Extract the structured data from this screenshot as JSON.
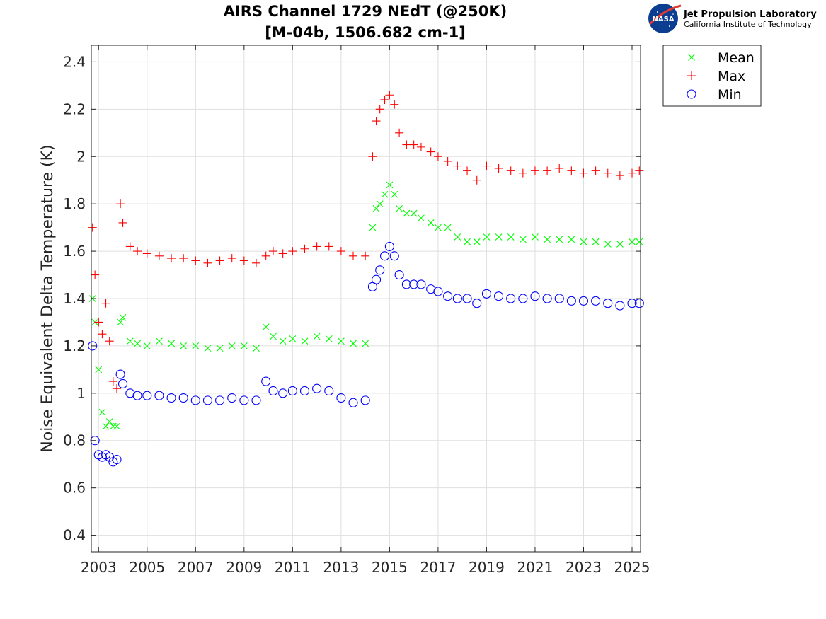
{
  "logo": {
    "name": "Jet Propulsion Laboratory",
    "subtitle": "California Institute of Technology",
    "badge": "NASA"
  },
  "chart_data": {
    "type": "scatter",
    "title": [
      "AIRS Channel 1729 NEdT (@250K)",
      "[M-04b, 1506.682 cm-1]"
    ],
    "xlabel": "",
    "ylabel": "Noise Equivalent Delta Temperature (K)",
    "xlim": [
      2002.7,
      2025.35
    ],
    "ylim": [
      0.33,
      2.47
    ],
    "xticks": [
      2003,
      2005,
      2007,
      2009,
      2011,
      2013,
      2015,
      2017,
      2019,
      2021,
      2023,
      2025
    ],
    "xtick_labels": [
      "2003",
      "2005",
      "2007",
      "2009",
      "2011",
      "2013",
      "2015",
      "2017",
      "2019",
      "2021",
      "2023",
      "2025"
    ],
    "yticks": [
      0.4,
      0.6,
      0.8,
      1.0,
      1.2,
      1.4,
      1.6,
      1.8,
      2.0,
      2.2,
      2.4
    ],
    "ytick_labels": [
      "0.4",
      "0.6",
      "0.8",
      "1",
      "1.2",
      "1.4",
      "1.6",
      "1.8",
      "2",
      "2.2",
      "2.4"
    ],
    "grid": true,
    "legend_position": "outside-top-right",
    "series": [
      {
        "name": "Mean",
        "marker": "x",
        "color": "#00ff00",
        "x": [
          2002.75,
          2002.85,
          2003.0,
          2003.15,
          2003.3,
          2003.45,
          2003.6,
          2003.75,
          2003.9,
          2004.0,
          2004.3,
          2004.6,
          2005.0,
          2005.5,
          2006.0,
          2006.5,
          2007.0,
          2007.5,
          2008.0,
          2008.5,
          2009.0,
          2009.5,
          2009.9,
          2010.2,
          2010.6,
          2011.0,
          2011.5,
          2012.0,
          2012.5,
          2013.0,
          2013.5,
          2014.0,
          2014.3,
          2014.45,
          2014.6,
          2014.8,
          2015.0,
          2015.2,
          2015.4,
          2015.7,
          2016.0,
          2016.3,
          2016.7,
          2017.0,
          2017.4,
          2017.8,
          2018.2,
          2018.6,
          2019.0,
          2019.5,
          2020.0,
          2020.5,
          2021.0,
          2021.5,
          2022.0,
          2022.5,
          2023.0,
          2023.5,
          2024.0,
          2024.5,
          2025.0,
          2025.3
        ],
        "y": [
          1.4,
          1.3,
          1.1,
          0.92,
          0.86,
          0.88,
          0.86,
          0.86,
          1.3,
          1.32,
          1.22,
          1.21,
          1.2,
          1.22,
          1.21,
          1.2,
          1.2,
          1.19,
          1.19,
          1.2,
          1.2,
          1.19,
          1.28,
          1.24,
          1.22,
          1.23,
          1.22,
          1.24,
          1.23,
          1.22,
          1.21,
          1.21,
          1.7,
          1.78,
          1.8,
          1.84,
          1.88,
          1.84,
          1.78,
          1.76,
          1.76,
          1.74,
          1.72,
          1.7,
          1.7,
          1.66,
          1.64,
          1.64,
          1.66,
          1.66,
          1.66,
          1.65,
          1.66,
          1.65,
          1.65,
          1.65,
          1.64,
          1.64,
          1.63,
          1.63,
          1.64,
          1.64
        ]
      },
      {
        "name": "Max",
        "marker": "+",
        "color": "#ff0000",
        "x": [
          2002.75,
          2002.85,
          2003.0,
          2003.15,
          2003.3,
          2003.45,
          2003.6,
          2003.75,
          2003.9,
          2004.0,
          2004.3,
          2004.6,
          2005.0,
          2005.5,
          2006.0,
          2006.5,
          2007.0,
          2007.5,
          2008.0,
          2008.5,
          2009.0,
          2009.5,
          2009.9,
          2010.2,
          2010.6,
          2011.0,
          2011.5,
          2012.0,
          2012.5,
          2013.0,
          2013.5,
          2014.0,
          2014.3,
          2014.45,
          2014.6,
          2014.8,
          2015.0,
          2015.2,
          2015.4,
          2015.7,
          2016.0,
          2016.3,
          2016.7,
          2017.0,
          2017.4,
          2017.8,
          2018.2,
          2018.6,
          2019.0,
          2019.5,
          2020.0,
          2020.5,
          2021.0,
          2021.5,
          2022.0,
          2022.5,
          2023.0,
          2023.5,
          2024.0,
          2024.5,
          2025.0,
          2025.3
        ],
        "y": [
          1.7,
          1.5,
          1.3,
          1.25,
          1.38,
          1.22,
          1.05,
          1.02,
          1.8,
          1.72,
          1.62,
          1.6,
          1.59,
          1.58,
          1.57,
          1.57,
          1.56,
          1.55,
          1.56,
          1.57,
          1.56,
          1.55,
          1.58,
          1.6,
          1.59,
          1.6,
          1.61,
          1.62,
          1.62,
          1.6,
          1.58,
          1.58,
          2.0,
          2.15,
          2.2,
          2.24,
          2.26,
          2.22,
          2.1,
          2.05,
          2.05,
          2.04,
          2.02,
          2.0,
          1.98,
          1.96,
          1.94,
          1.9,
          1.96,
          1.95,
          1.94,
          1.93,
          1.94,
          1.94,
          1.95,
          1.94,
          1.93,
          1.94,
          1.93,
          1.92,
          1.93,
          1.94
        ]
      },
      {
        "name": "Min",
        "marker": "o",
        "color": "#0000ff",
        "x": [
          2002.75,
          2002.85,
          2003.0,
          2003.15,
          2003.3,
          2003.45,
          2003.6,
          2003.75,
          2003.9,
          2004.0,
          2004.3,
          2004.6,
          2005.0,
          2005.5,
          2006.0,
          2006.5,
          2007.0,
          2007.5,
          2008.0,
          2008.5,
          2009.0,
          2009.5,
          2009.9,
          2010.2,
          2010.6,
          2011.0,
          2011.5,
          2012.0,
          2012.5,
          2013.0,
          2013.5,
          2014.0,
          2014.3,
          2014.45,
          2014.6,
          2014.8,
          2015.0,
          2015.2,
          2015.4,
          2015.7,
          2016.0,
          2016.3,
          2016.7,
          2017.0,
          2017.4,
          2017.8,
          2018.2,
          2018.6,
          2019.0,
          2019.5,
          2020.0,
          2020.5,
          2021.0,
          2021.5,
          2022.0,
          2022.5,
          2023.0,
          2023.5,
          2024.0,
          2024.5,
          2025.0,
          2025.3
        ],
        "y": [
          1.2,
          0.8,
          0.74,
          0.73,
          0.74,
          0.73,
          0.71,
          0.72,
          1.08,
          1.04,
          1.0,
          0.99,
          0.99,
          0.99,
          0.98,
          0.98,
          0.97,
          0.97,
          0.97,
          0.98,
          0.97,
          0.97,
          1.05,
          1.01,
          1.0,
          1.01,
          1.01,
          1.02,
          1.01,
          0.98,
          0.96,
          0.97,
          1.45,
          1.48,
          1.52,
          1.58,
          1.62,
          1.58,
          1.5,
          1.46,
          1.46,
          1.46,
          1.44,
          1.43,
          1.41,
          1.4,
          1.4,
          1.38,
          1.42,
          1.41,
          1.4,
          1.4,
          1.41,
          1.4,
          1.4,
          1.39,
          1.39,
          1.39,
          1.38,
          1.37,
          1.38,
          1.38
        ]
      }
    ]
  }
}
